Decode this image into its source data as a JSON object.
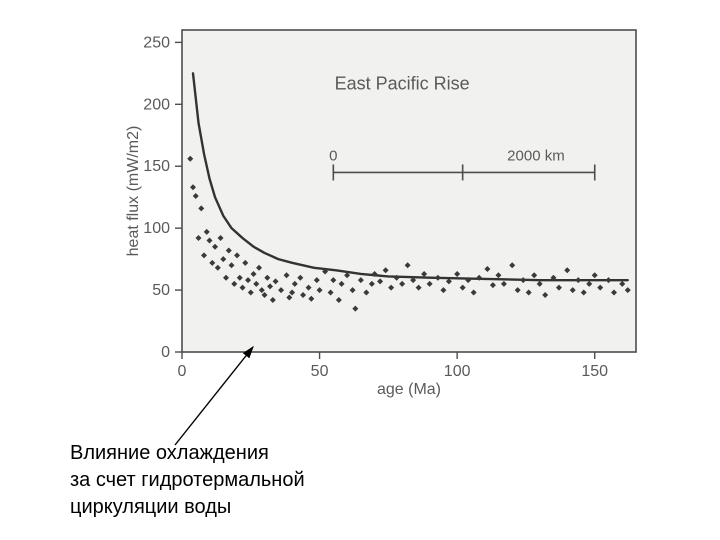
{
  "chart": {
    "type": "scatter",
    "title": "East Pacific Rise",
    "title_fontsize": 18,
    "xlabel": "age (Ma)",
    "ylabel": "heat flux (mW/m2)",
    "label_fontsize": 16,
    "tick_fontsize": 16,
    "xlim": [
      0,
      165
    ],
    "ylim": [
      0,
      260
    ],
    "xticks": [
      0,
      50,
      100,
      150
    ],
    "yticks": [
      0,
      50,
      100,
      150,
      200,
      250
    ],
    "background_color": "#f1f1ef",
    "page_background": "#ffffff",
    "frame_color": "#4d4d4d",
    "tick_color": "#4d4d4d",
    "text_color": "#5a5a5a",
    "curve_color": "#333333",
    "curve_width": 2.4,
    "marker_color": "#3a3a3a",
    "marker_size": 6,
    "marker_style": "diamond",
    "scale_bar": {
      "labels": [
        "0",
        "2000 km"
      ],
      "x_start": 55,
      "x_end": 150,
      "y": 145,
      "tick_height": 8,
      "mid_tick_at": 102
    },
    "curve_points": [
      [
        4,
        225
      ],
      [
        6,
        185
      ],
      [
        8,
        160
      ],
      [
        10,
        140
      ],
      [
        12,
        125
      ],
      [
        15,
        110
      ],
      [
        18,
        100
      ],
      [
        22,
        92
      ],
      [
        26,
        85
      ],
      [
        30,
        80
      ],
      [
        35,
        75
      ],
      [
        40,
        72
      ],
      [
        48,
        68
      ],
      [
        56,
        66
      ],
      [
        65,
        63
      ],
      [
        75,
        61
      ],
      [
        90,
        60
      ],
      [
        110,
        59
      ],
      [
        130,
        58
      ],
      [
        150,
        58
      ],
      [
        162,
        58
      ]
    ],
    "scatter": [
      [
        3,
        156
      ],
      [
        4,
        133
      ],
      [
        5,
        126
      ],
      [
        7,
        116
      ],
      [
        6,
        92
      ],
      [
        8,
        78
      ],
      [
        9,
        97
      ],
      [
        10,
        90
      ],
      [
        11,
        72
      ],
      [
        12,
        85
      ],
      [
        14,
        92
      ],
      [
        13,
        68
      ],
      [
        15,
        75
      ],
      [
        16,
        60
      ],
      [
        17,
        82
      ],
      [
        18,
        70
      ],
      [
        19,
        55
      ],
      [
        20,
        78
      ],
      [
        21,
        60
      ],
      [
        22,
        52
      ],
      [
        23,
        72
      ],
      [
        24,
        58
      ],
      [
        25,
        48
      ],
      [
        26,
        63
      ],
      [
        27,
        55
      ],
      [
        28,
        68
      ],
      [
        29,
        50
      ],
      [
        30,
        46
      ],
      [
        31,
        60
      ],
      [
        32,
        53
      ],
      [
        33,
        42
      ],
      [
        34,
        57
      ],
      [
        36,
        50
      ],
      [
        38,
        62
      ],
      [
        39,
        44
      ],
      [
        40,
        48
      ],
      [
        41,
        55
      ],
      [
        43,
        60
      ],
      [
        44,
        46
      ],
      [
        46,
        52
      ],
      [
        47,
        43
      ],
      [
        49,
        58
      ],
      [
        50,
        50
      ],
      [
        52,
        65
      ],
      [
        54,
        48
      ],
      [
        55,
        58
      ],
      [
        57,
        42
      ],
      [
        58,
        55
      ],
      [
        60,
        62
      ],
      [
        62,
        50
      ],
      [
        63,
        35
      ],
      [
        65,
        58
      ],
      [
        67,
        48
      ],
      [
        69,
        55
      ],
      [
        70,
        63
      ],
      [
        72,
        57
      ],
      [
        74,
        66
      ],
      [
        76,
        52
      ],
      [
        78,
        60
      ],
      [
        80,
        55
      ],
      [
        82,
        70
      ],
      [
        84,
        58
      ],
      [
        86,
        52
      ],
      [
        88,
        63
      ],
      [
        90,
        55
      ],
      [
        93,
        60
      ],
      [
        95,
        50
      ],
      [
        97,
        57
      ],
      [
        100,
        63
      ],
      [
        102,
        52
      ],
      [
        104,
        58
      ],
      [
        106,
        48
      ],
      [
        108,
        60
      ],
      [
        111,
        67
      ],
      [
        113,
        54
      ],
      [
        115,
        62
      ],
      [
        117,
        55
      ],
      [
        120,
        70
      ],
      [
        122,
        50
      ],
      [
        124,
        58
      ],
      [
        126,
        48
      ],
      [
        128,
        62
      ],
      [
        130,
        55
      ],
      [
        132,
        46
      ],
      [
        135,
        60
      ],
      [
        137,
        52
      ],
      [
        140,
        66
      ],
      [
        142,
        50
      ],
      [
        144,
        58
      ],
      [
        146,
        48
      ],
      [
        148,
        55
      ],
      [
        150,
        62
      ],
      [
        152,
        52
      ],
      [
        155,
        58
      ],
      [
        157,
        48
      ],
      [
        160,
        55
      ],
      [
        162,
        50
      ]
    ]
  },
  "annotation": {
    "lines": [
      "Влияние охлаждения",
      "за счет гидротермальной",
      "циркуляции воды"
    ],
    "arrow": {
      "from_page": [
        175,
        445
      ],
      "to_page": [
        253,
        347
      ],
      "color": "#000000",
      "width": 1.4
    }
  }
}
